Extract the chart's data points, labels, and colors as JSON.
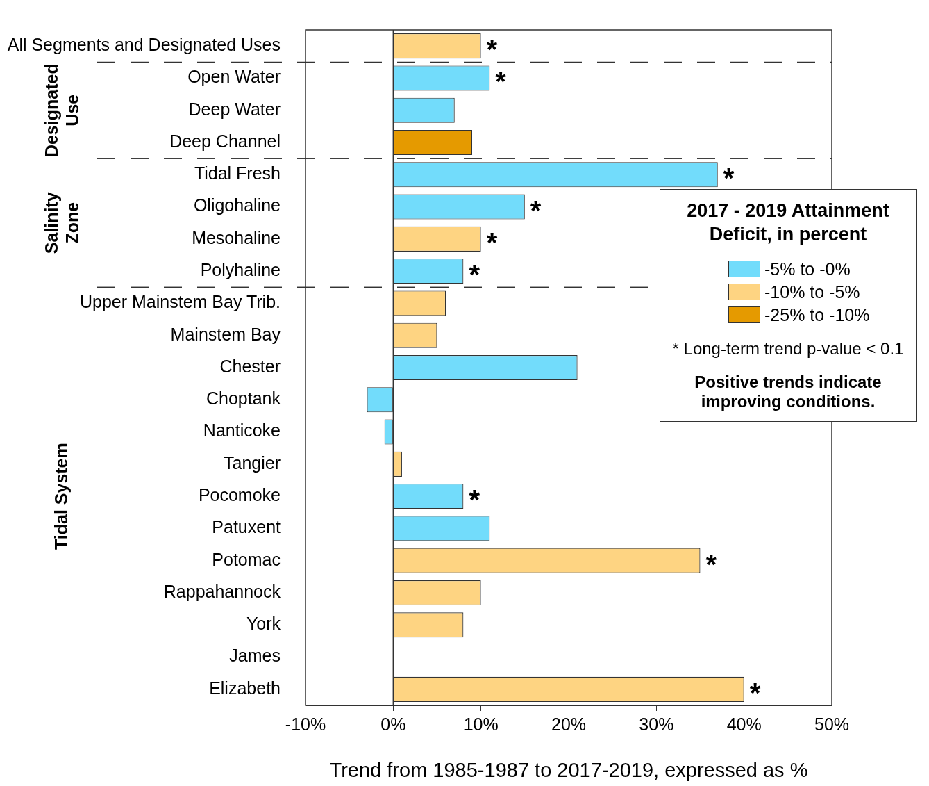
{
  "chart_data": {
    "type": "bar",
    "orientation": "horizontal",
    "stacked": true,
    "categories": [
      "All Segments and Designated Uses",
      "Open Water",
      "Deep Water",
      "Deep Channel",
      "Tidal Fresh",
      "Oligohaline",
      "Mesohaline",
      "Polyhaline",
      "Upper Mainstem Bay Trib.",
      "Mainstem Bay",
      "Chester",
      "Choptank",
      "Nanticoke",
      "Tangier",
      "Pocomoke",
      "Patuxent",
      "Potomac",
      "Rappahannock",
      "York",
      "James",
      "Elizabeth"
    ],
    "series": [
      {
        "name": "-5% to -0%",
        "color": "#72dcfb",
        "values": [
          null,
          11,
          7,
          null,
          37,
          15,
          null,
          8,
          null,
          null,
          21,
          -3,
          -1,
          null,
          8,
          11,
          null,
          null,
          null,
          null,
          null
        ]
      },
      {
        "name": "-10% to -5%",
        "color": "#fed482",
        "values": [
          10,
          null,
          null,
          null,
          null,
          null,
          10,
          null,
          6,
          5,
          null,
          null,
          null,
          1,
          null,
          null,
          35,
          10,
          8,
          null,
          40
        ]
      },
      {
        "name": "-25% to -10%",
        "color": "#e59a00",
        "values": [
          null,
          null,
          null,
          9,
          null,
          null,
          null,
          null,
          null,
          null,
          null,
          null,
          null,
          null,
          null,
          null,
          null,
          null,
          null,
          null,
          null
        ]
      }
    ],
    "xlim": [
      -10,
      50
    ],
    "xticks": [
      {
        "value": -10,
        "label": "-10%"
      },
      {
        "value": 0,
        "label": "0%"
      },
      {
        "value": 10,
        "label": "10%"
      },
      {
        "value": 20,
        "label": "20%"
      },
      {
        "value": 30,
        "label": "30%"
      },
      {
        "value": 40,
        "label": "40%"
      },
      {
        "value": 50,
        "label": "50%"
      }
    ],
    "xlabel": "Trend from 1985-1987 to 2017-2019, expressed as %",
    "legend": "right",
    "legend_title": "2017 - 2019 Attainment Deficit, in percent",
    "grid": false,
    "annotations": [
      "Designated Use",
      "Salinity Zone",
      "Tidal System",
      {
        "text": "*",
        "x": 10,
        "y": "All Segments and Designated Uses"
      },
      {
        "text": "*",
        "x": 11,
        "y": "Open Water"
      },
      {
        "text": "*",
        "x": 37,
        "y": "Tidal Fresh"
      },
      {
        "text": "*",
        "x": 15,
        "y": "Oligohaline"
      },
      {
        "text": "*",
        "x": 10,
        "y": "Mesohaline"
      },
      {
        "text": "*",
        "x": 8,
        "y": "Polyhaline"
      },
      {
        "text": "*",
        "x": 8,
        "y": "Pocomoke"
      },
      {
        "text": "*",
        "x": 35,
        "y": "Potomac"
      },
      {
        "text": "*",
        "x": 40,
        "y": "Elizabeth"
      },
      "* Long-term trend p-value < 0.1",
      "Positive trends indicate improving conditions."
    ]
  }
}
